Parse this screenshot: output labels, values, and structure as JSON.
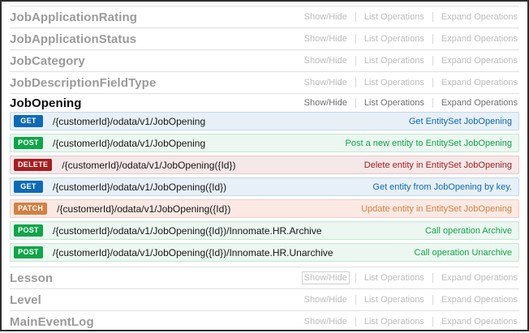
{
  "labels": {
    "show_hide": "Show/Hide",
    "list_operations": "List Operations",
    "expand_operations": "Expand Operations"
  },
  "method_styles": {
    "GET": {
      "badge": "#0f6ab4",
      "row_bg": "#e7f0f7",
      "row_border": "#c3d9ec",
      "text": "#0f6ab4"
    },
    "POST": {
      "badge": "#10a54a",
      "row_bg": "#ebf7f0",
      "row_border": "#c3e8d1",
      "text": "#10a54a"
    },
    "DELETE": {
      "badge": "#a41e22",
      "row_bg": "#f5e8e8",
      "row_border": "#e8c6c7",
      "text": "#a41e22"
    },
    "PATCH": {
      "badge": "#d38042",
      "row_bg": "#fce9e3",
      "row_border": "#f0cecb",
      "text": "#d38042"
    }
  },
  "resources": [
    {
      "name": "JobApplicationRating",
      "expanded": false
    },
    {
      "name": "JobApplicationStatus",
      "expanded": false
    },
    {
      "name": "JobCategory",
      "expanded": false
    },
    {
      "name": "JobDescriptionFieldType",
      "expanded": false
    },
    {
      "name": "JobOpening",
      "expanded": true,
      "operations": [
        {
          "method": "GET",
          "path": "/{customerId}/odata/v1/JobOpening",
          "summary": "Get EntitySet JobOpening"
        },
        {
          "method": "POST",
          "path": "/{customerId}/odata/v1/JobOpening",
          "summary": "Post a new entity to EntitySet JobOpening"
        },
        {
          "method": "DELETE",
          "path": "/{customerId}/odata/v1/JobOpening({Id})",
          "summary": "Delete entity in EntitySet JobOpening"
        },
        {
          "method": "GET",
          "path": "/{customerId}/odata/v1/JobOpening({Id})",
          "summary": "Get entity from JobOpening by key."
        },
        {
          "method": "PATCH",
          "path": "/{customerId}/odata/v1/JobOpening({Id})",
          "summary": "Update entity in EntitySet JobOpening"
        },
        {
          "method": "POST",
          "path": "/{customerId}/odata/v1/JobOpening({Id})/Innomate.HR.Archive",
          "summary": "Call operation Archive"
        },
        {
          "method": "POST",
          "path": "/{customerId}/odata/v1/JobOpening({Id})/Innomate.HR.Unarchive",
          "summary": "Call operation Unarchive"
        }
      ]
    },
    {
      "name": "Lesson",
      "expanded": false,
      "show_hide_focused": true
    },
    {
      "name": "Level",
      "expanded": false
    },
    {
      "name": "MainEventLog",
      "expanded": false
    }
  ]
}
